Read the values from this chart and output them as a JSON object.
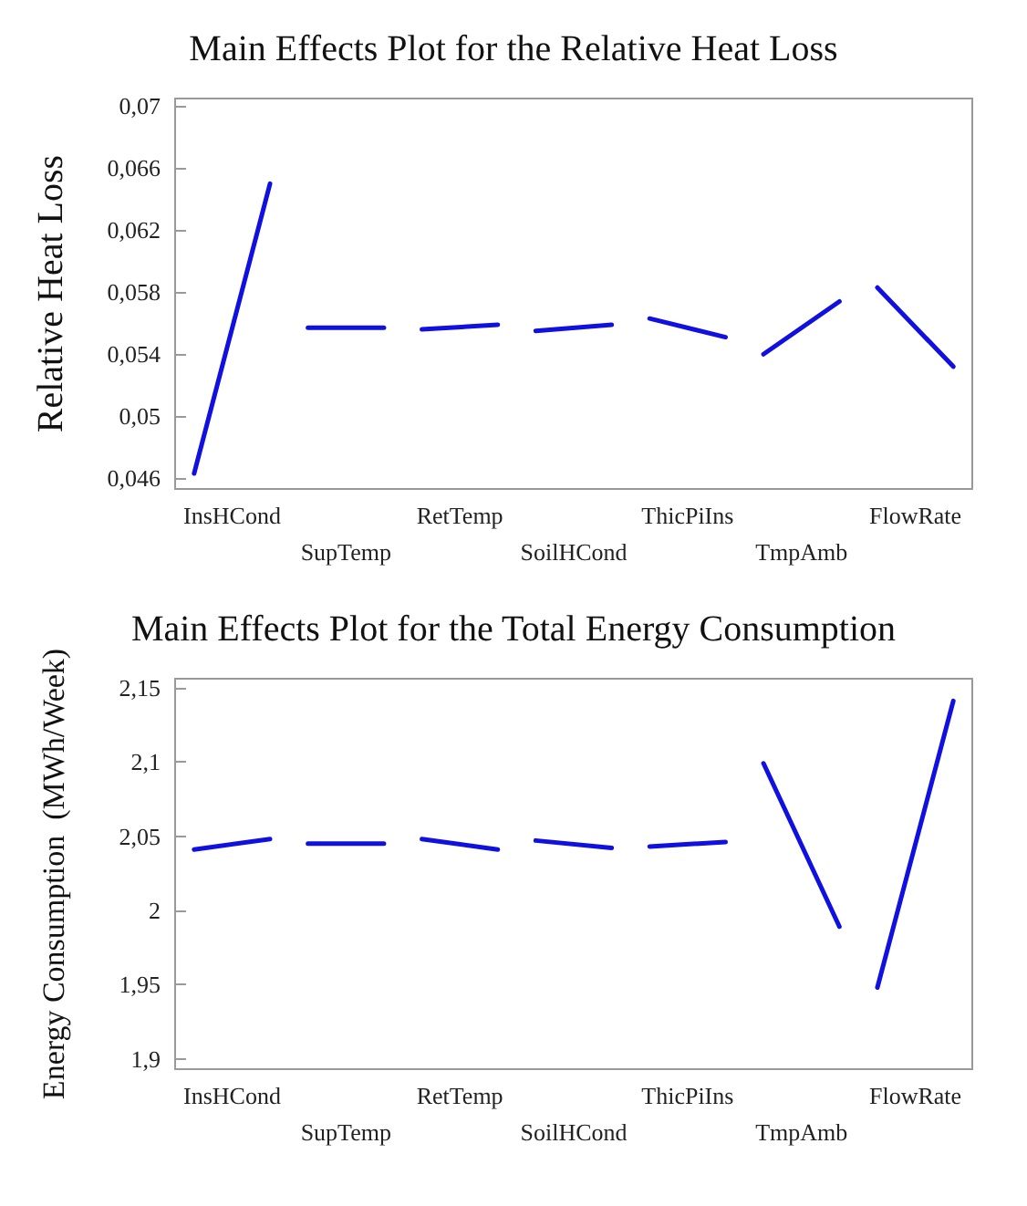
{
  "chart_data": [
    {
      "type": "line",
      "title": "Main Effects Plot for the Relative Heat Loss",
      "ylabel": "Relative Heat Loss",
      "categories": [
        null,
        "InsHCond",
        null,
        null,
        "SupTemp",
        null,
        null,
        "RetTemp",
        null,
        null,
        "SoilHCond",
        null,
        null,
        "ThicPiIns",
        null,
        null,
        "TmpAmb",
        null,
        null,
        "FlowRate",
        null
      ],
      "series": [
        {
          "color": "#1010e0",
          "values": [
            0.0463,
            null,
            0.065,
            null,
            null,
            null,
            null,
            null,
            null,
            null,
            null,
            null,
            null,
            null,
            null,
            null,
            null,
            null,
            null,
            null,
            null
          ]
        },
        {
          "color": "#1010e0",
          "values": [
            null,
            null,
            null,
            0.0557,
            null,
            0.0557,
            null,
            null,
            null,
            null,
            null,
            null,
            null,
            null,
            null,
            null,
            null,
            null,
            null,
            null,
            null
          ]
        },
        {
          "color": "#1010e0",
          "values": [
            null,
            null,
            null,
            null,
            null,
            null,
            0.0556,
            null,
            0.0559,
            null,
            null,
            null,
            null,
            null,
            null,
            null,
            null,
            null,
            null,
            null,
            null
          ]
        },
        {
          "color": "#1010e0",
          "values": [
            null,
            null,
            null,
            null,
            null,
            null,
            null,
            null,
            null,
            0.0555,
            null,
            0.0559,
            null,
            null,
            null,
            null,
            null,
            null,
            null,
            null,
            null
          ]
        },
        {
          "color": "#1010e0",
          "values": [
            null,
            null,
            null,
            null,
            null,
            null,
            null,
            null,
            null,
            null,
            null,
            null,
            0.0563,
            null,
            0.0551,
            null,
            null,
            null,
            null,
            null,
            null
          ]
        },
        {
          "color": "#1010e0",
          "values": [
            null,
            null,
            null,
            null,
            null,
            null,
            null,
            null,
            null,
            null,
            null,
            null,
            null,
            null,
            null,
            0.054,
            null,
            0.0574,
            null,
            null,
            null
          ]
        },
        {
          "color": "#1010e0",
          "values": [
            null,
            null,
            null,
            null,
            null,
            null,
            null,
            null,
            null,
            null,
            null,
            null,
            null,
            null,
            null,
            null,
            null,
            null,
            0.0583,
            null,
            0.0532
          ]
        }
      ],
      "ylim": [
        0.0453,
        0.0705
      ],
      "yticks": [
        {
          "value": 0.046,
          "label": "0,046"
        },
        {
          "value": 0.05,
          "label": "0,05"
        },
        {
          "value": 0.054,
          "label": "0,054"
        },
        {
          "value": 0.058,
          "label": "0,058"
        },
        {
          "value": 0.062,
          "label": "0,062"
        },
        {
          "value": 0.066,
          "label": "0,066"
        },
        {
          "value": 0.07,
          "label": "0,07"
        }
      ],
      "grid": false,
      "line_style": "solid",
      "marker": "none"
    },
    {
      "type": "line",
      "title": "Main Effects Plot for the Total Energy Consumption",
      "ylabel": "Energy Consumption  (MWh/Week)",
      "categories": [
        null,
        "InsHCond",
        null,
        null,
        "SupTemp",
        null,
        null,
        "RetTemp",
        null,
        null,
        "SoilHCond",
        null,
        null,
        "ThicPiIns",
        null,
        null,
        "TmpAmb",
        null,
        null,
        "FlowRate",
        null
      ],
      "series": [
        {
          "color": "#1010e0",
          "values": [
            2.041,
            null,
            2.048,
            null,
            null,
            null,
            null,
            null,
            null,
            null,
            null,
            null,
            null,
            null,
            null,
            null,
            null,
            null,
            null,
            null,
            null
          ]
        },
        {
          "color": "#1010e0",
          "values": [
            null,
            null,
            null,
            2.045,
            null,
            2.045,
            null,
            null,
            null,
            null,
            null,
            null,
            null,
            null,
            null,
            null,
            null,
            null,
            null,
            null,
            null
          ]
        },
        {
          "color": "#1010e0",
          "values": [
            null,
            null,
            null,
            null,
            null,
            null,
            2.048,
            null,
            2.041,
            null,
            null,
            null,
            null,
            null,
            null,
            null,
            null,
            null,
            null,
            null,
            null
          ]
        },
        {
          "color": "#1010e0",
          "values": [
            null,
            null,
            null,
            null,
            null,
            null,
            null,
            null,
            null,
            2.047,
            null,
            2.042,
            null,
            null,
            null,
            null,
            null,
            null,
            null,
            null,
            null
          ]
        },
        {
          "color": "#1010e0",
          "values": [
            null,
            null,
            null,
            null,
            null,
            null,
            null,
            null,
            null,
            null,
            null,
            null,
            2.043,
            null,
            2.046,
            null,
            null,
            null,
            null,
            null,
            null
          ]
        },
        {
          "color": "#1010e0",
          "values": [
            null,
            null,
            null,
            null,
            null,
            null,
            null,
            null,
            null,
            null,
            null,
            null,
            null,
            null,
            null,
            2.099,
            null,
            1.989,
            null,
            null,
            null
          ]
        },
        {
          "color": "#1010e0",
          "values": [
            null,
            null,
            null,
            null,
            null,
            null,
            null,
            null,
            null,
            null,
            null,
            null,
            null,
            null,
            null,
            null,
            null,
            null,
            1.948,
            null,
            2.141
          ]
        }
      ],
      "ylim": [
        1.893,
        2.156
      ],
      "yticks": [
        {
          "value": 1.9,
          "label": "1,9"
        },
        {
          "value": 1.95,
          "label": "1,95"
        },
        {
          "value": 2,
          "label": "2"
        },
        {
          "value": 2.05,
          "label": "2,05"
        },
        {
          "value": 2.1,
          "label": "2,1"
        },
        {
          "value": 2.15,
          "label": "2,15"
        }
      ],
      "grid": false,
      "line_style": "solid",
      "marker": "none"
    }
  ]
}
